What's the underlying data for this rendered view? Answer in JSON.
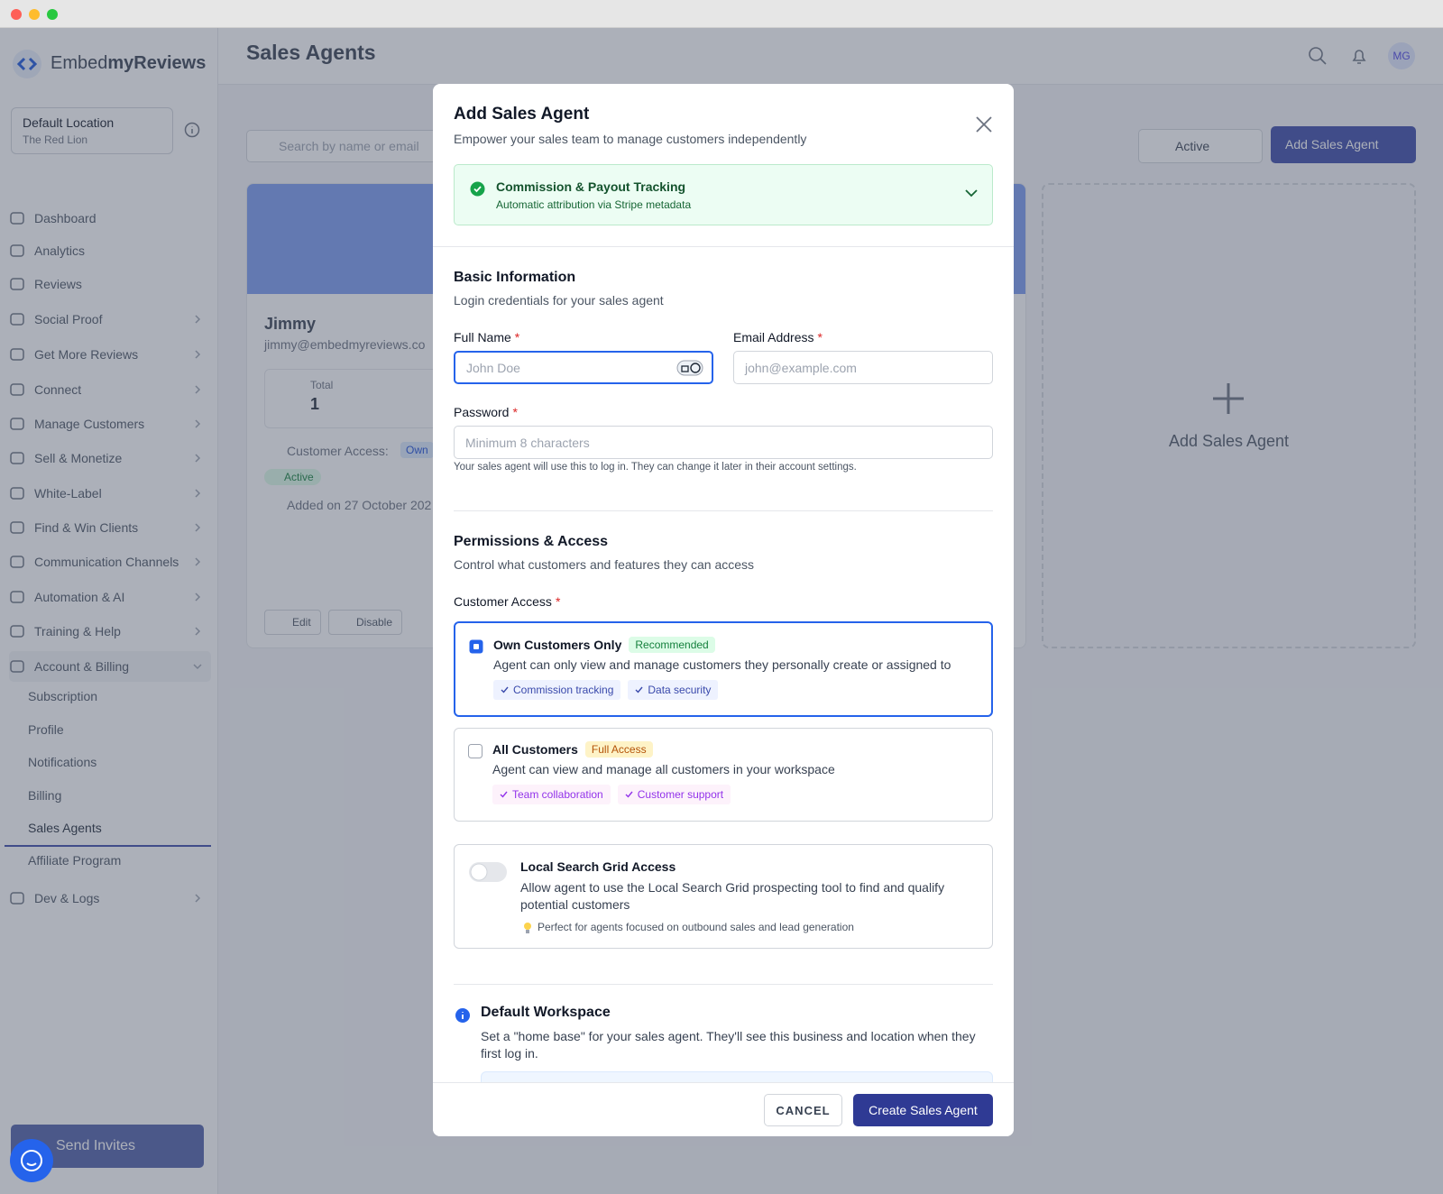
{
  "sidebar": {
    "brand_prefix": "Embed",
    "brand_suffix": "myReviews",
    "location_name": "Default Location",
    "location_sub": "The Red Lion",
    "nav": [
      "Dashboard",
      "Analytics",
      "Reviews",
      "Social Proof",
      "Get More Reviews",
      "Connect",
      "Manage Customers",
      "Sell & Monetize",
      "White-Label",
      "Find & Win Clients",
      "Communication Channels",
      "Automation & AI",
      "Training & Help",
      "Account & Billing"
    ],
    "subnav": [
      "Subscription",
      "Profile",
      "Notifications",
      "Billing",
      "Sales Agents",
      "Affiliate Program"
    ],
    "nav_after": [
      "Dev & Logs"
    ],
    "send_invites": "Send Invites"
  },
  "header": {
    "title": "Sales Agents",
    "avatar": "MG"
  },
  "toolbar": {
    "search_placeholder": "Search by name or email",
    "status": "Active",
    "add_button": "Add Sales Agent"
  },
  "agent_card": {
    "name": "Jimmy",
    "email": "jimmy@embedmyreviews.co",
    "total_label": "Total",
    "total_value": 1,
    "access_label": "Customer Access:",
    "access_value": "Own",
    "status": "Active",
    "added": "Added on 27 October 202",
    "actions": [
      "Edit",
      "Disable"
    ]
  },
  "add_card": {
    "label": "Add Sales Agent"
  },
  "modal": {
    "title": "Add Sales Agent",
    "subtitle": "Empower your sales team to manage customers independently",
    "banner": {
      "title": "Commission & Payout Tracking",
      "subtitle": "Automatic attribution via Stripe metadata"
    },
    "basic": {
      "heading": "Basic Information",
      "subtitle": "Login credentials for your sales agent"
    },
    "required_mark": "*",
    "fields": {
      "name_label": "Full Name",
      "name_placeholder": "John Doe",
      "email_label": "Email Address",
      "email_placeholder": "john@example.com",
      "password_label": "Password",
      "password_placeholder": "Minimum 8 characters",
      "password_help": "Your sales agent will use this to log in. They can change it later in their account settings."
    },
    "permissions": {
      "heading": "Permissions & Access",
      "subtitle": "Control what customers and features they can access",
      "access_label": "Customer Access",
      "options": [
        {
          "title": "Own Customers Only",
          "badge": "Recommended",
          "description": "Agent can only view and manage customers they personally create or assigned to",
          "tags": [
            "Commission tracking",
            "Data security"
          ]
        },
        {
          "title": "All Customers",
          "badge": "Full Access",
          "description": "Agent can view and manage all customers in your workspace",
          "tags": [
            "Team collaboration",
            "Customer support"
          ]
        }
      ]
    },
    "grid_access": {
      "title": "Local Search Grid Access",
      "description": "Allow agent to use the Local Search Grid prospecting tool to find and qualify potential customers",
      "tip": "Perfect for agents focused on outbound sales and lead generation"
    },
    "workspace": {
      "title": "Default Workspace",
      "description": "Set a \"home base\" for your sales agent. They'll see this business and location when they first log in."
    },
    "cancel": "CANCEL",
    "submit": "Create Sales Agent"
  }
}
